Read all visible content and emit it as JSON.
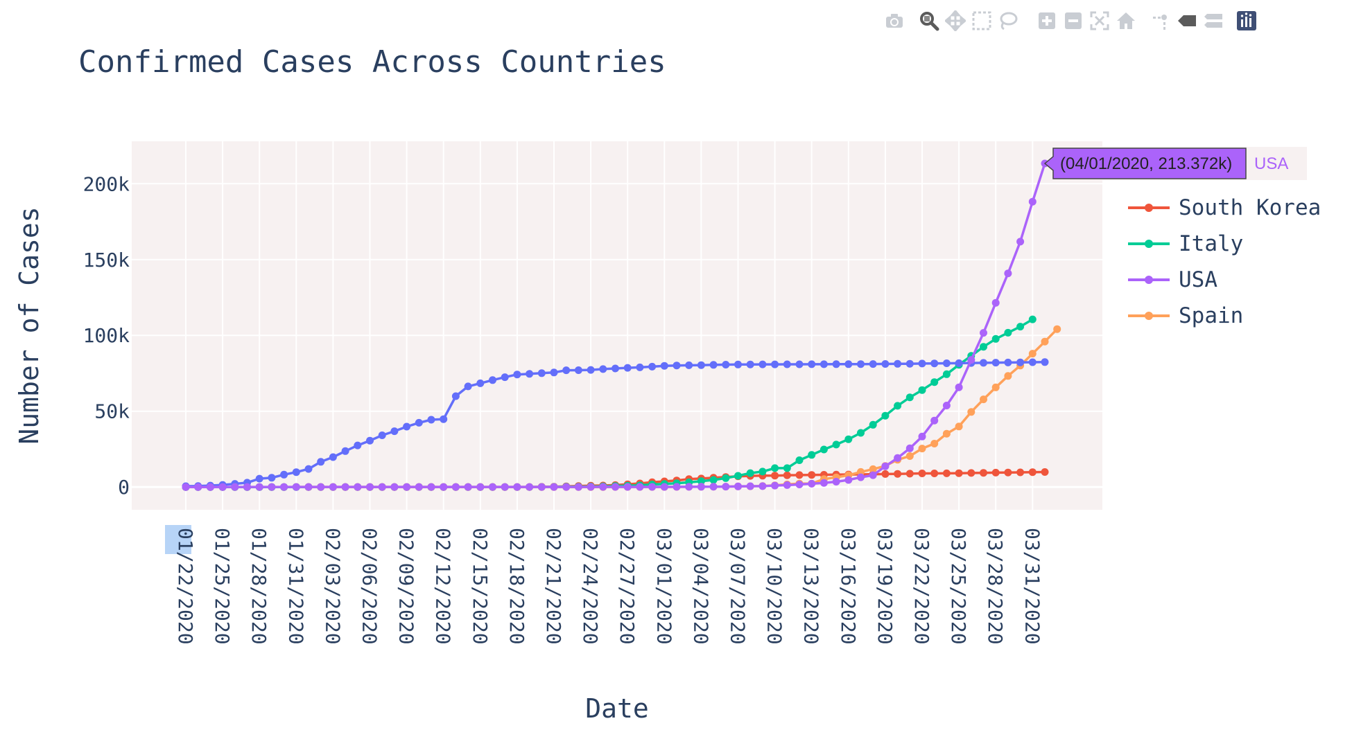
{
  "toolbar": {
    "buttons": [
      {
        "name": "camera-icon",
        "label": "Download plot as a png"
      },
      {
        "name": "zoom-icon",
        "label": "Zoom"
      },
      {
        "name": "pan-icon",
        "label": "Pan"
      },
      {
        "name": "box-select-icon",
        "label": "Box Select"
      },
      {
        "name": "lasso-select-icon",
        "label": "Lasso Select"
      },
      {
        "name": "zoom-in-icon",
        "label": "Zoom in"
      },
      {
        "name": "zoom-out-icon",
        "label": "Zoom out"
      },
      {
        "name": "autoscale-icon",
        "label": "Autoscale"
      },
      {
        "name": "reset-axes-icon",
        "label": "Reset axes"
      },
      {
        "name": "spike-lines-icon",
        "label": "Toggle Spike Lines"
      },
      {
        "name": "hover-closest-icon",
        "label": "Show closest data on hover"
      },
      {
        "name": "hover-compare-icon",
        "label": "Compare data on hover"
      },
      {
        "name": "plotly-logo-icon",
        "label": "Produced with Plotly"
      }
    ]
  },
  "chart_data": {
    "type": "line",
    "title": "Confirmed Cases Across Countries",
    "xlabel": "Date",
    "ylabel": "Number of Cases",
    "ylim": [
      -15000,
      228000
    ],
    "grid": true,
    "legend_position": "right",
    "x_start": "01/22/2020",
    "x_tick_labels": [
      "01/22/2020",
      "01/25/2020",
      "01/28/2020",
      "01/31/2020",
      "02/03/2020",
      "02/06/2020",
      "02/09/2020",
      "02/12/2020",
      "02/15/2020",
      "02/18/2020",
      "02/21/2020",
      "02/24/2020",
      "02/27/2020",
      "03/01/2020",
      "03/04/2020",
      "03/07/2020",
      "03/10/2020",
      "03/13/2020",
      "03/16/2020",
      "03/19/2020",
      "03/22/2020",
      "03/25/2020",
      "03/28/2020",
      "03/31/2020"
    ],
    "y_tick_values": [
      0,
      50000,
      100000,
      150000,
      200000
    ],
    "y_tick_labels": [
      "0",
      "50k",
      "100k",
      "150k",
      "200k"
    ],
    "colors": {
      "china": "#636efa",
      "south_korea": "#EF553B",
      "italy": "#00cc96",
      "usa": "#ab63fa",
      "spain": "#FFA15A"
    },
    "series": [
      {
        "key": "china",
        "color": "#636efa",
        "start": "01/22/2020",
        "values": [
          548,
          643,
          920,
          1406,
          2075,
          2877,
          5509,
          6087,
          8141,
          9802,
          11891,
          16630,
          19716,
          23707,
          27440,
          30587,
          34110,
          36814,
          39829,
          42354,
          44386,
          44759,
          59895,
          66358,
          68413,
          70513,
          72434,
          74211,
          74619,
          75077,
          75550,
          77001,
          77022,
          77241,
          77754,
          78166,
          78600,
          78928,
          79356,
          79932,
          80136,
          80261,
          80386,
          80537,
          80690,
          80770,
          80823,
          80860,
          80887,
          80921,
          80932,
          80945,
          80977,
          81003,
          81033,
          81058,
          81102,
          81156,
          81250,
          81305,
          81435,
          81498,
          81591,
          81661,
          81782,
          81897,
          81999,
          82122,
          82198,
          82279,
          82361
        ]
      },
      {
        "name": "South Korea",
        "key": "south_korea",
        "color": "#EF553B",
        "start": "01/22/2020",
        "values": [
          1,
          1,
          2,
          2,
          3,
          4,
          4,
          4,
          4,
          11,
          12,
          15,
          15,
          16,
          19,
          23,
          24,
          24,
          25,
          27,
          28,
          28,
          28,
          28,
          28,
          29,
          30,
          31,
          31,
          104,
          204,
          433,
          602,
          833,
          977,
          1261,
          1766,
          2337,
          3150,
          3736,
          4335,
          5186,
          5621,
          6088,
          6593,
          7041,
          7314,
          7478,
          7513,
          7755,
          7869,
          7979,
          8086,
          8162,
          8236,
          8320,
          8413,
          8565,
          8652,
          8799,
          8961,
          8961,
          9037,
          9137,
          9241,
          9332,
          9478,
          9583,
          9661,
          9786,
          9887
        ]
      },
      {
        "name": "Italy",
        "key": "italy",
        "color": "#00cc96",
        "start": "01/22/2020",
        "values": [
          0,
          0,
          0,
          0,
          0,
          0,
          0,
          0,
          0,
          2,
          2,
          2,
          2,
          2,
          2,
          2,
          3,
          3,
          3,
          3,
          3,
          3,
          3,
          3,
          3,
          3,
          3,
          3,
          3,
          20,
          62,
          155,
          229,
          322,
          453,
          655,
          888,
          1128,
          1694,
          2036,
          2502,
          3089,
          3858,
          4636,
          5883,
          7375,
          9172,
          10149,
          12462,
          12462,
          17660,
          21157,
          24747,
          27980,
          31506,
          35713,
          41035,
          47021,
          53578,
          59138,
          63927,
          69176,
          74386,
          80589,
          86498,
          92472,
          97689,
          101739,
          105792,
          110574
        ]
      },
      {
        "name": "USA",
        "key": "usa",
        "color": "#ab63fa",
        "start": "01/22/2020",
        "values": [
          1,
          1,
          2,
          2,
          5,
          5,
          5,
          5,
          5,
          7,
          8,
          8,
          11,
          11,
          11,
          11,
          11,
          11,
          11,
          11,
          12,
          12,
          13,
          13,
          13,
          13,
          13,
          13,
          13,
          13,
          15,
          15,
          15,
          51,
          51,
          57,
          58,
          60,
          68,
          74,
          98,
          118,
          149,
          217,
          262,
          402,
          518,
          583,
          959,
          1281,
          1663,
          2179,
          2727,
          3499,
          4632,
          6421,
          7786,
          13680,
          19101,
          25493,
          33276,
          43847,
          53740,
          65778,
          83836,
          101657,
          121478,
          140886,
          161807,
          188172,
          213372
        ]
      },
      {
        "name": "Spain",
        "key": "spain",
        "color": "#FFA15A",
        "start": "02/01/2020",
        "values": [
          1,
          1,
          1,
          1,
          1,
          1,
          1,
          1,
          2,
          2,
          2,
          2,
          2,
          2,
          2,
          2,
          2,
          2,
          2,
          2,
          2,
          2,
          2,
          2,
          2,
          6,
          13,
          15,
          32,
          45,
          84,
          120,
          165,
          222,
          259,
          400,
          500,
          673,
          1073,
          1695,
          2277,
          2277,
          5232,
          6391,
          7798,
          9942,
          11748,
          13910,
          17963,
          20410,
          25374,
          28603,
          35136,
          39885,
          49515,
          57786,
          65719,
          73235,
          80110,
          87956,
          95923,
          104118
        ]
      }
    ],
    "hover": {
      "label": "(04/01/2020, 213.372k)",
      "series": "USA",
      "x": "04/01/2020",
      "y": 213372
    }
  }
}
